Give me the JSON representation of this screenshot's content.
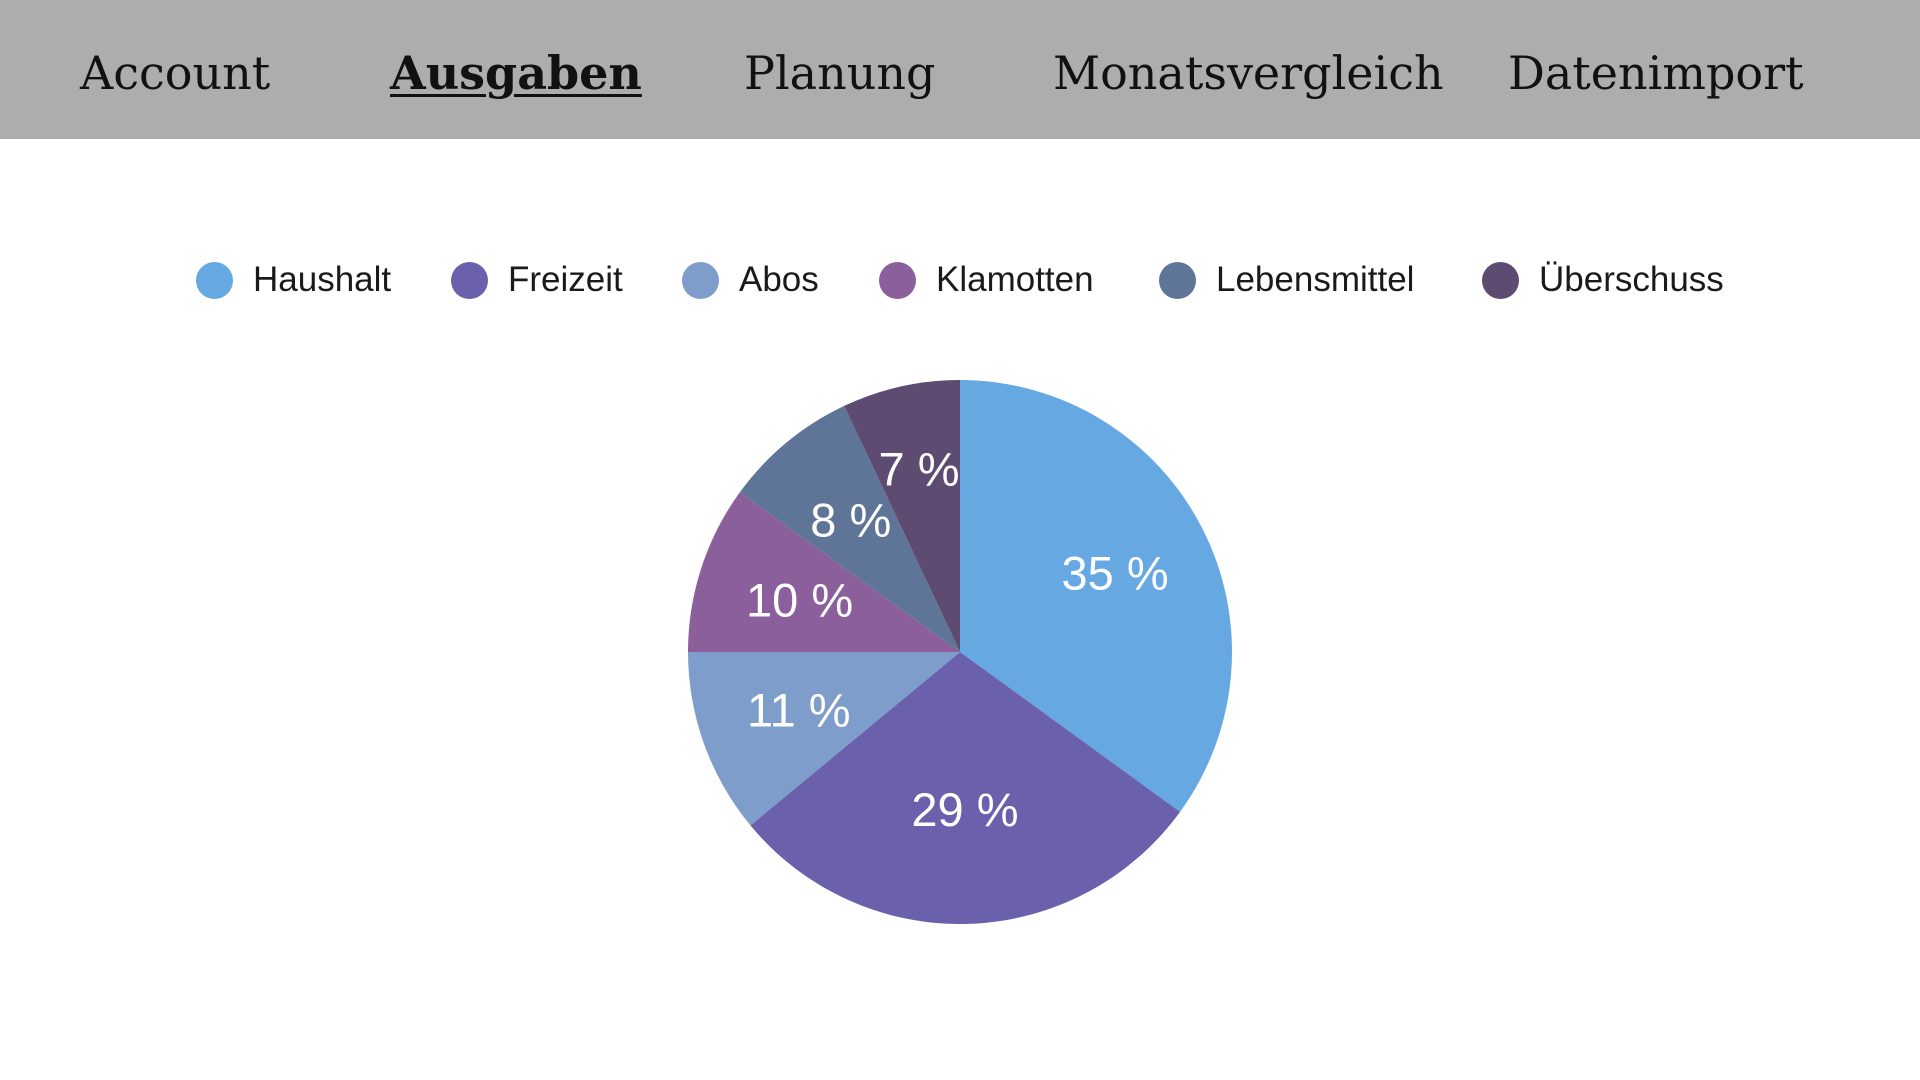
{
  "nav": {
    "items": [
      {
        "label": "Account",
        "active": false
      },
      {
        "label": "Ausgaben",
        "active": true
      },
      {
        "label": "Planung",
        "active": false
      },
      {
        "label": "Monatsvergleich",
        "active": false
      },
      {
        "label": "Datenimport",
        "active": false
      }
    ],
    "background": "#adadad"
  },
  "chart_data": {
    "type": "pie",
    "categories": [
      "Haushalt",
      "Freizeit",
      "Abos",
      "Klamotten",
      "Lebensmittel",
      "Überschuss"
    ],
    "values": [
      35,
      29,
      11,
      10,
      8,
      7
    ],
    "labels": [
      "35 %",
      "29 %",
      "11 %",
      "10 %",
      "8 %",
      "7 %"
    ],
    "colors": [
      "#65a8e2",
      "#6b60ab",
      "#7f9dca",
      "#8a5f9b",
      "#5f7597",
      "#5d4b72"
    ],
    "legend_position": "top",
    "start_angle": "12 o'clock",
    "direction": "clockwise"
  }
}
